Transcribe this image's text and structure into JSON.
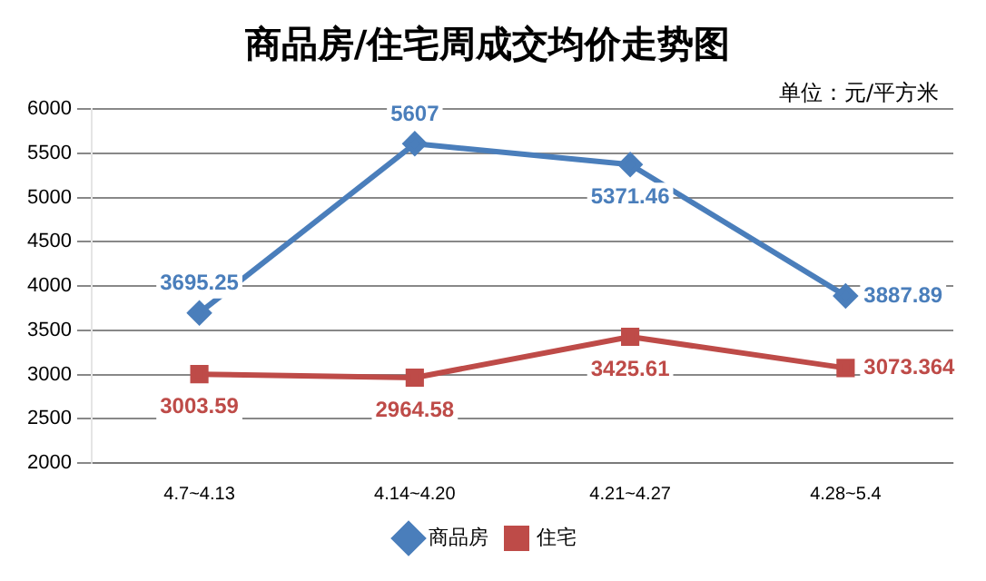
{
  "chart_data": {
    "type": "line",
    "title": "商品房/住宅周成交均价走势图",
    "annotations": [
      "单位：元/平方米"
    ],
    "categories": [
      "4.7~4.13",
      "4.14~4.20",
      "4.21~4.27",
      "4.28~5.4"
    ],
    "series": [
      {
        "name": "商品房",
        "color": "#4a7ebb",
        "marker": "diamond",
        "values": [
          3695.25,
          5607,
          5371.46,
          3887.89
        ]
      },
      {
        "name": "住宅",
        "color": "#be4b48",
        "marker": "square",
        "values": [
          3003.59,
          2964.58,
          3425.61,
          3073.364
        ]
      }
    ],
    "ylim": [
      2000,
      6000
    ],
    "yticks": [
      2000,
      2500,
      3000,
      3500,
      4000,
      4500,
      5000,
      5500,
      6000
    ],
    "grid": "y",
    "legend": "bottom",
    "data_labels": true
  }
}
